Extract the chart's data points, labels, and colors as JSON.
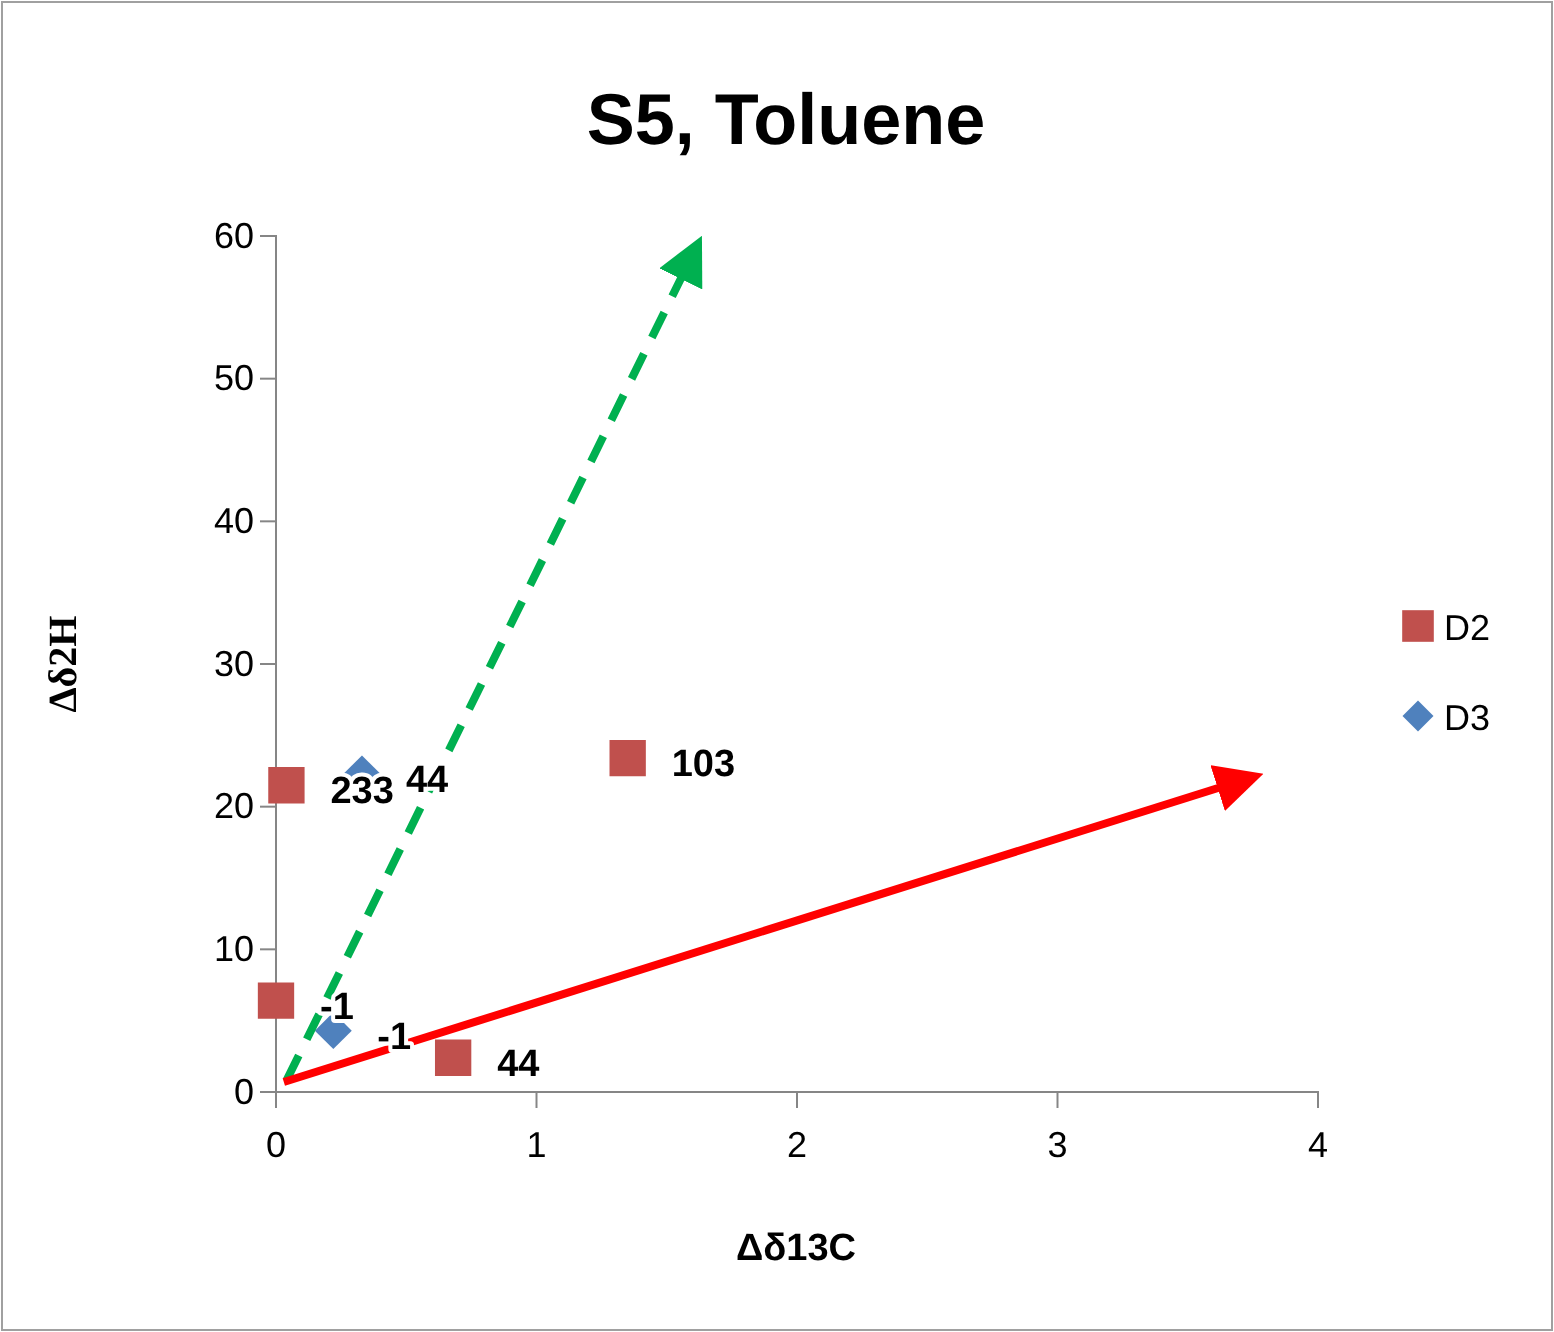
{
  "chart_data": {
    "type": "scatter",
    "title": "S5, Toluene",
    "xlabel": "Δδ13C",
    "ylabel": "Δδ2H",
    "xlim": [
      0,
      4
    ],
    "xticks": [
      0,
      1,
      2,
      3,
      4
    ],
    "ylim": [
      0,
      60
    ],
    "yticks": [
      0,
      10,
      20,
      30,
      40,
      50,
      60
    ],
    "grid": false,
    "legend": "right",
    "series": [
      {
        "name": "D2",
        "color": "#c0504d",
        "marker": "square",
        "x": [
          0.04,
          0,
          0.68,
          1.35
        ],
        "values": [
          21.5,
          6.4,
          2.4,
          23.4
        ]
      },
      {
        "name": "D3",
        "color": "#4f81bd",
        "marker": "diamond",
        "x": [
          0.33,
          0.22
        ],
        "values": [
          22.3,
          4.3
        ]
      },
      {
        "type": "line",
        "color": "#00b050",
        "line_style": "dashed",
        "x": [
          0.04,
          1.57
        ],
        "values": [
          0.8,
          57.6
        ]
      },
      {
        "type": "line",
        "color": "#ff0000",
        "line_style": "solid",
        "x": [
          0.03,
          3.65
        ],
        "values": [
          0.7,
          21.5
        ]
      }
    ],
    "annotations": [
      {
        "text": "233",
        "x": 0.04,
        "y": 21.5
      },
      {
        "text": "-1",
        "x": 0,
        "y": 6.4
      },
      {
        "text": "44",
        "x": 0.68,
        "y": 2.4
      },
      {
        "text": "103",
        "x": 1.35,
        "y": 23.4
      },
      {
        "text": "44",
        "x": 0.33,
        "y": 22.3
      },
      {
        "text": "-1",
        "x": 0.22,
        "y": 4.3
      }
    ]
  }
}
